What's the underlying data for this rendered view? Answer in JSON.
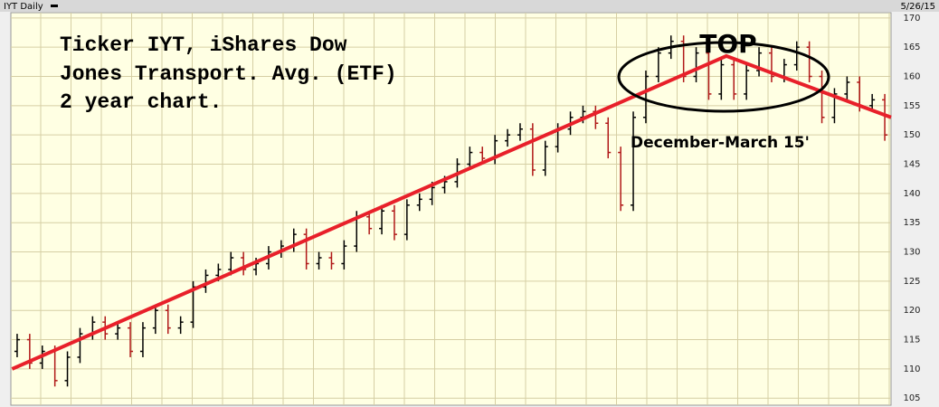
{
  "chart_data": {
    "type": "ohlc",
    "header_left": "IYT Daily",
    "header_right": "5/26/15",
    "annotations": [
      "Ticker IYT, iShares Dow",
      "Jones Transport. Avg. (ETF)",
      "2 year chart."
    ],
    "top_label": "TOP",
    "period_label": "December-March 15'",
    "ylim": [
      103.8,
      170.9
    ],
    "yticks": [
      105,
      110,
      115,
      120,
      125,
      130,
      135,
      140,
      145,
      150,
      155,
      160,
      165,
      170
    ],
    "grid": true,
    "up_color": "#000000",
    "down_color": "#b01818",
    "open": [
      113,
      115,
      111,
      113,
      108,
      112,
      116,
      118,
      116,
      117,
      113,
      117,
      120,
      117,
      118,
      124,
      126,
      127,
      129,
      127,
      128,
      130,
      131,
      133,
      128,
      129,
      128,
      131,
      136,
      134,
      137,
      133,
      138,
      139,
      141,
      142,
      145,
      147,
      146,
      149,
      150,
      151,
      144,
      148,
      151,
      153,
      154,
      152,
      147,
      138,
      153,
      160,
      164,
      166,
      160,
      164,
      157,
      162,
      157,
      161,
      164,
      160,
      162,
      165,
      160,
      153,
      157,
      159,
      155,
      156
    ],
    "high": [
      116,
      116,
      114,
      114,
      113,
      117,
      119,
      119,
      118,
      118,
      118,
      121,
      121,
      119,
      125,
      127,
      128,
      130,
      130,
      129,
      131,
      132,
      134,
      134,
      130,
      130,
      132,
      137,
      137,
      138,
      138,
      139,
      140,
      142,
      143,
      146,
      148,
      148,
      150,
      151,
      152,
      152,
      149,
      152,
      154,
      155,
      155,
      153,
      148,
      154,
      161,
      165,
      167,
      167,
      165,
      165,
      163,
      163,
      162,
      165,
      165,
      163,
      166,
      166,
      161,
      158,
      160,
      160,
      157,
      157
    ],
    "low": [
      112,
      110,
      110,
      107,
      107,
      111,
      115,
      115,
      115,
      112,
      112,
      116,
      116,
      116,
      117,
      123,
      125,
      126,
      126,
      126,
      127,
      129,
      130,
      127,
      127,
      127,
      127,
      130,
      133,
      133,
      132,
      132,
      137,
      138,
      140,
      141,
      144,
      145,
      145,
      148,
      149,
      143,
      143,
      147,
      150,
      152,
      151,
      146,
      137,
      137,
      152,
      159,
      163,
      159,
      159,
      156,
      156,
      156,
      156,
      160,
      159,
      159,
      161,
      159,
      152,
      152,
      156,
      154,
      154,
      149
    ],
    "close": [
      115,
      111,
      113,
      108,
      112,
      116,
      118,
      116,
      117,
      113,
      117,
      120,
      117,
      118,
      124,
      126,
      127,
      129,
      127,
      128,
      130,
      131,
      133,
      128,
      129,
      128,
      131,
      136,
      134,
      137,
      133,
      138,
      139,
      141,
      142,
      145,
      147,
      146,
      149,
      150,
      151,
      144,
      148,
      151,
      153,
      154,
      152,
      147,
      138,
      153,
      160,
      164,
      166,
      160,
      164,
      157,
      162,
      157,
      161,
      164,
      160,
      162,
      165,
      160,
      153,
      157,
      159,
      155,
      156,
      150
    ],
    "trendline": {
      "color": "#e8202a",
      "x": [
        -0.4,
        56.4,
        69.5
      ],
      "y": [
        110,
        163.5,
        153
      ]
    }
  }
}
